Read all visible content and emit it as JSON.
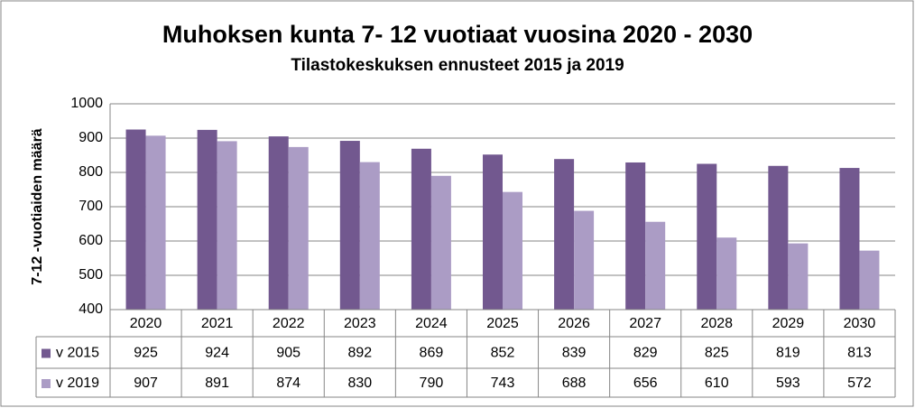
{
  "chart_data": {
    "type": "bar",
    "title": "Muhoksen kunta 7- 12 vuotiaat vuosina 2020 - 2030",
    "subtitle": "Tilastokeskuksen ennusteet 2015 ja 2019",
    "y_label": "7-12 -vuotiaiden määrä",
    "categories": [
      "2020",
      "2021",
      "2022",
      "2023",
      "2024",
      "2025",
      "2026",
      "2027",
      "2028",
      "2029",
      "2030"
    ],
    "series": [
      {
        "name": "v 2015",
        "color": "#72588f",
        "values": [
          925,
          924,
          905,
          892,
          869,
          852,
          839,
          829,
          825,
          819,
          813
        ]
      },
      {
        "name": "v 2019",
        "color": "#ab9cc5",
        "values": [
          907,
          891,
          874,
          830,
          790,
          743,
          688,
          656,
          610,
          593,
          572
        ]
      }
    ],
    "ylim": [
      400,
      1000
    ],
    "yticks": [
      400,
      500,
      600,
      700,
      800,
      900,
      1000
    ],
    "grid": true
  }
}
